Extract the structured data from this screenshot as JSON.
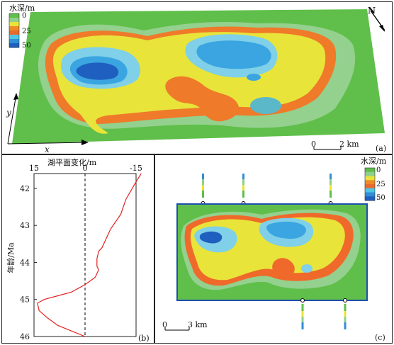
{
  "legend_title": "水深/m",
  "legend_ticks": [
    "0",
    "25",
    "50"
  ],
  "legend_colors": [
    "#5fbf4a",
    "#8fd08a",
    "#e8e43a",
    "#ef8a2a",
    "#e86a2e",
    "#4fc6e8",
    "#2f8fd6",
    "#1f5fbf"
  ],
  "panel_a": {
    "label": "(a)",
    "north": "N",
    "scale": {
      "start": "0",
      "end": "2 km"
    },
    "axis_x": "x",
    "axis_y": "y"
  },
  "panel_b": {
    "label": "(b)",
    "title": "湖平面变化/m",
    "ylabel": "年龄/Ma",
    "x_ticks": [
      "15",
      "0",
      "-15"
    ],
    "y_ticks": [
      "42",
      "43",
      "44",
      "45",
      "46"
    ]
  },
  "panel_c": {
    "label": "(c)",
    "legend_title": "水深/m",
    "legend_ticks": [
      "0",
      "25",
      "50"
    ],
    "scale": {
      "start": "0",
      "end": "3 km"
    }
  },
  "chart_data": {
    "type": "line",
    "title": "湖平面变化/m",
    "xlabel": "湖平面变化/m",
    "ylabel": "年龄/Ma",
    "xlim": [
      15,
      -15
    ],
    "ylim": [
      41.6,
      46
    ],
    "series": [
      {
        "x": [
          -16.5,
          -14.5,
          -12,
          -10.5,
          -9,
          -7.5,
          -6.5,
          -5,
          -4,
          -3.5,
          -3.5,
          -4,
          -3,
          0,
          4,
          8,
          12,
          14,
          13.5,
          11,
          8,
          4,
          0
        ],
        "y": [
          41.6,
          41.9,
          42.3,
          42.7,
          42.9,
          43.1,
          43.3,
          43.6,
          43.7,
          43.9,
          44.1,
          44.2,
          44.4,
          44.6,
          44.8,
          44.9,
          45.0,
          45.1,
          45.3,
          45.5,
          45.7,
          45.85,
          46.0
        ]
      }
    ]
  }
}
